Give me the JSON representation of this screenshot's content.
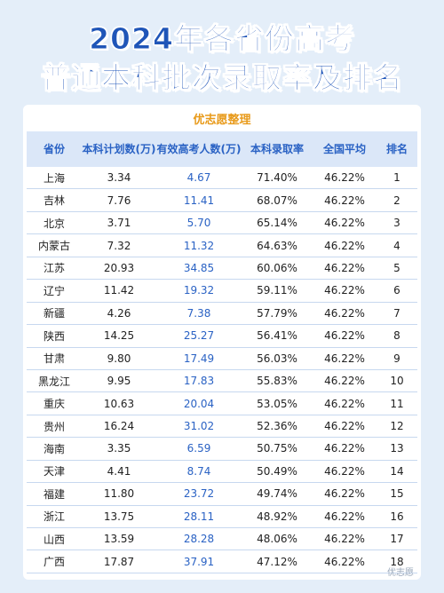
{
  "title_line1": "2024年各省份高考",
  "title_line2": "普通本科批次录取率及排名",
  "subtitle": "优志愿整理",
  "headers": {
    "province": "省份",
    "plan": "本科计划数(万)",
    "valid": "有效高考人数(万)",
    "rate": "本科录取率",
    "avg": "全国平均",
    "rank": "排名"
  },
  "rows": [
    {
      "province": "上海",
      "plan": "3.34",
      "valid": "4.67",
      "rate": "71.40%",
      "avg": "46.22%",
      "rank": "1"
    },
    {
      "province": "吉林",
      "plan": "7.76",
      "valid": "11.41",
      "rate": "68.07%",
      "avg": "46.22%",
      "rank": "2"
    },
    {
      "province": "北京",
      "plan": "3.71",
      "valid": "5.70",
      "rate": "65.14%",
      "avg": "46.22%",
      "rank": "3"
    },
    {
      "province": "内蒙古",
      "plan": "7.32",
      "valid": "11.32",
      "rate": "64.63%",
      "avg": "46.22%",
      "rank": "4"
    },
    {
      "province": "江苏",
      "plan": "20.93",
      "valid": "34.85",
      "rate": "60.06%",
      "avg": "46.22%",
      "rank": "5"
    },
    {
      "province": "辽宁",
      "plan": "11.42",
      "valid": "19.32",
      "rate": "59.11%",
      "avg": "46.22%",
      "rank": "6"
    },
    {
      "province": "新疆",
      "plan": "4.26",
      "valid": "7.38",
      "rate": "57.79%",
      "avg": "46.22%",
      "rank": "7"
    },
    {
      "province": "陕西",
      "plan": "14.25",
      "valid": "25.27",
      "rate": "56.41%",
      "avg": "46.22%",
      "rank": "8"
    },
    {
      "province": "甘肃",
      "plan": "9.80",
      "valid": "17.49",
      "rate": "56.03%",
      "avg": "46.22%",
      "rank": "9"
    },
    {
      "province": "黑龙江",
      "plan": "9.95",
      "valid": "17.83",
      "rate": "55.83%",
      "avg": "46.22%",
      "rank": "10"
    },
    {
      "province": "重庆",
      "plan": "10.63",
      "valid": "20.04",
      "rate": "53.05%",
      "avg": "46.22%",
      "rank": "11"
    },
    {
      "province": "贵州",
      "plan": "16.24",
      "valid": "31.02",
      "rate": "52.36%",
      "avg": "46.22%",
      "rank": "12"
    },
    {
      "province": "海南",
      "plan": "3.35",
      "valid": "6.59",
      "rate": "50.75%",
      "avg": "46.22%",
      "rank": "13"
    },
    {
      "province": "天津",
      "plan": "4.41",
      "valid": "8.74",
      "rate": "50.49%",
      "avg": "46.22%",
      "rank": "14"
    },
    {
      "province": "福建",
      "plan": "11.80",
      "valid": "23.72",
      "rate": "49.74%",
      "avg": "46.22%",
      "rank": "15"
    },
    {
      "province": "浙江",
      "plan": "13.75",
      "valid": "28.11",
      "rate": "48.92%",
      "avg": "46.22%",
      "rank": "16"
    },
    {
      "province": "山西",
      "plan": "13.59",
      "valid": "28.28",
      "rate": "48.06%",
      "avg": "46.22%",
      "rank": "17"
    },
    {
      "province": "广西",
      "plan": "17.87",
      "valid": "37.91",
      "rate": "47.12%",
      "avg": "46.22%",
      "rank": "18"
    }
  ],
  "watermark": "优志愿"
}
